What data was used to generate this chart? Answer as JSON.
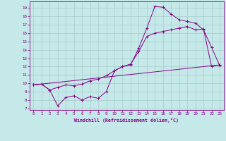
{
  "xlabel": "Windchill (Refroidissement éolien,°C)",
  "bg_color": "#c5e8e8",
  "line_color": "#880088",
  "grid_color": "#a8cccc",
  "xlim": [
    -0.5,
    23.5
  ],
  "ylim": [
    6.8,
    19.8
  ],
  "xticks": [
    0,
    1,
    2,
    3,
    4,
    5,
    6,
    7,
    8,
    9,
    10,
    11,
    12,
    13,
    14,
    15,
    16,
    17,
    18,
    19,
    20,
    21,
    22,
    23
  ],
  "yticks": [
    7,
    8,
    9,
    10,
    11,
    12,
    13,
    14,
    15,
    16,
    17,
    18,
    19
  ],
  "line1_x": [
    0,
    1,
    2,
    3,
    4,
    5,
    6,
    7,
    8,
    9,
    10,
    11,
    12,
    13,
    14,
    15,
    16,
    17,
    18,
    19,
    20,
    21,
    22,
    23
  ],
  "line1_y": [
    9.8,
    9.9,
    9.2,
    7.3,
    8.3,
    8.5,
    8.0,
    8.4,
    8.2,
    9.0,
    11.5,
    12.0,
    12.2,
    14.2,
    16.6,
    19.2,
    19.1,
    18.3,
    17.6,
    17.4,
    17.2,
    16.4,
    14.3,
    12.1
  ],
  "line2_x": [
    0,
    1,
    2,
    3,
    4,
    5,
    6,
    7,
    8,
    9,
    10,
    11,
    12,
    13,
    14,
    15,
    16,
    17,
    18,
    19,
    20,
    21,
    22,
    23
  ],
  "line2_y": [
    9.8,
    9.9,
    9.2,
    9.5,
    9.8,
    9.7,
    9.9,
    10.3,
    10.5,
    10.9,
    11.5,
    12.0,
    12.3,
    13.8,
    15.6,
    16.0,
    16.2,
    16.4,
    16.6,
    16.8,
    16.4,
    16.5,
    12.0,
    12.2
  ],
  "line3_x": [
    0,
    23
  ],
  "line3_y": [
    9.8,
    12.2
  ]
}
